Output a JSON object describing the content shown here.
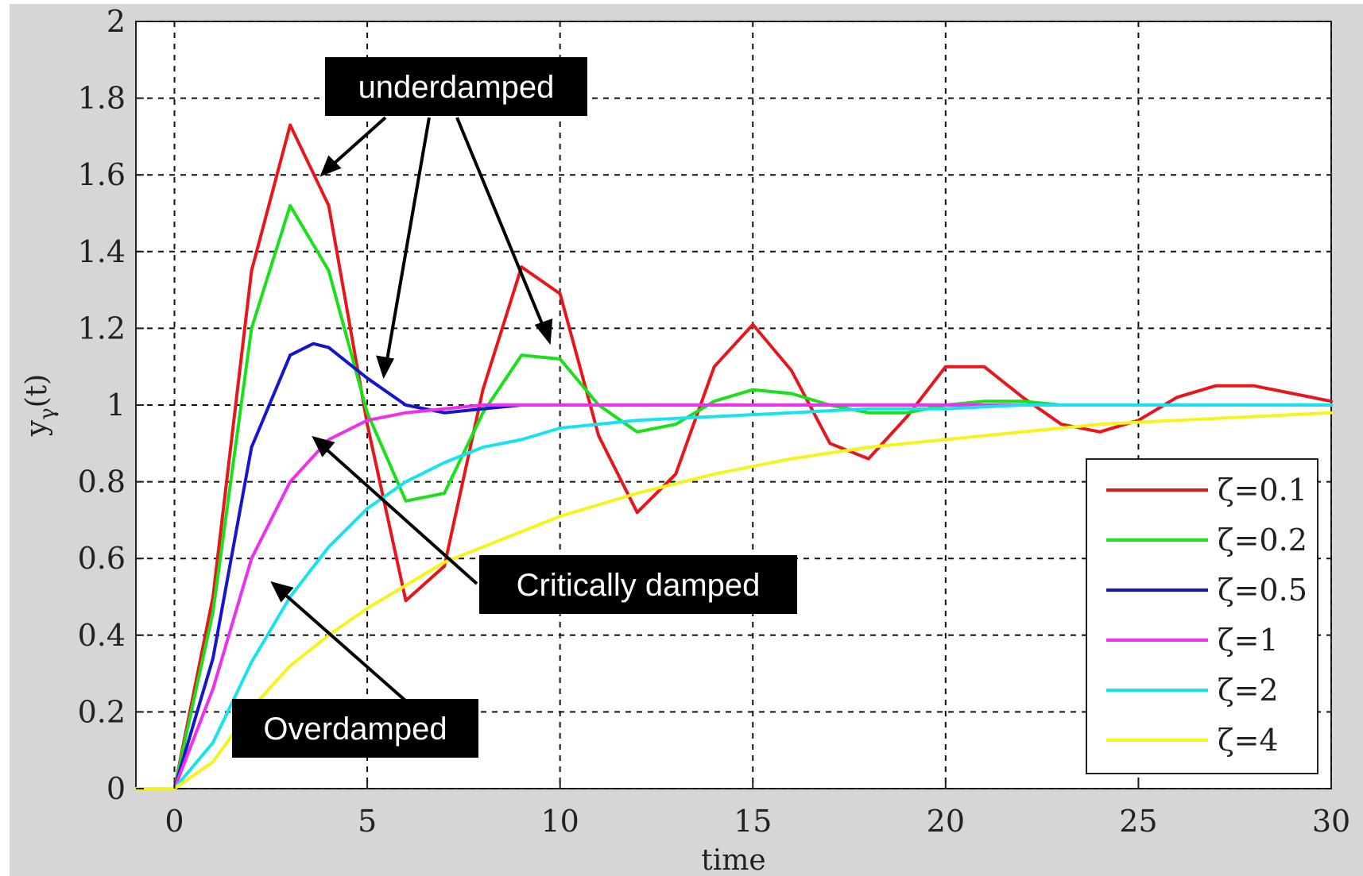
{
  "chart_data": {
    "type": "line",
    "xlabel": "time",
    "ylabel": "y",
    "ylabel_subscript": "γ",
    "ylabel_suffix": "(t)",
    "xlim": [
      -1,
      30
    ],
    "ylim": [
      0,
      2
    ],
    "xticks": [
      0,
      5,
      10,
      15,
      20,
      25,
      30
    ],
    "yticks": [
      0,
      0.2,
      0.4,
      0.6,
      0.8,
      1,
      1.2,
      1.4,
      1.6,
      1.8,
      2
    ],
    "xtick_labels": [
      "0",
      "5",
      "10",
      "15",
      "20",
      "25",
      "30"
    ],
    "ytick_labels": [
      "0",
      "0.2",
      "0.4",
      "0.6",
      "0.8",
      "1",
      "1.2",
      "1.4",
      "1.6",
      "1.8",
      "2"
    ],
    "grid": true,
    "legend_position": "bottom-right",
    "series": [
      {
        "name": "ζ=0.1",
        "zeta": 0.1,
        "color": "#e8161b",
        "x": [
          -1,
          0,
          1,
          2,
          3,
          4,
          5,
          6,
          7,
          8,
          9,
          10,
          11,
          12,
          13,
          14,
          15,
          16,
          17,
          18,
          19,
          20,
          21,
          22,
          23,
          24,
          25,
          26,
          27,
          28,
          29,
          30
        ],
        "y": [
          0,
          0,
          0.5,
          1.35,
          1.73,
          1.52,
          0.95,
          0.49,
          0.58,
          1.04,
          1.36,
          1.29,
          0.92,
          0.72,
          0.82,
          1.1,
          1.21,
          1.09,
          0.9,
          0.86,
          0.97,
          1.1,
          1.1,
          1.02,
          0.95,
          0.93,
          0.96,
          1.02,
          1.05,
          1.05,
          1.03,
          1.01
        ]
      },
      {
        "name": "ζ=0.2",
        "zeta": 0.2,
        "color": "#19e019",
        "x": [
          -1,
          0,
          1,
          2,
          3,
          4,
          5,
          6,
          7,
          8,
          9,
          10,
          11,
          12,
          13,
          14,
          15,
          16,
          17,
          18,
          19,
          20,
          21,
          22,
          23,
          24,
          25,
          26,
          27,
          28,
          29,
          30
        ],
        "y": [
          0,
          0,
          0.46,
          1.2,
          1.52,
          1.35,
          0.98,
          0.75,
          0.77,
          0.98,
          1.13,
          1.12,
          1.0,
          0.93,
          0.95,
          1.01,
          1.04,
          1.03,
          1.0,
          0.98,
          0.98,
          1.0,
          1.01,
          1.01,
          1.0,
          1.0,
          1.0,
          1.0,
          1.0,
          1.0,
          1.0,
          1.0
        ]
      },
      {
        "name": "ζ=0.5",
        "zeta": 0.5,
        "color": "#1515d0",
        "x": [
          -1,
          0,
          1,
          2,
          3,
          3.6,
          4,
          5,
          6,
          7,
          8,
          9,
          10,
          11,
          12
        ],
        "y": [
          0,
          0,
          0.34,
          0.89,
          1.13,
          1.16,
          1.15,
          1.07,
          1.0,
          0.98,
          0.99,
          1.0,
          1.0,
          1.0,
          1.0
        ]
      },
      {
        "name": "ζ=1",
        "zeta": 1,
        "color": "#f02ef0",
        "x": [
          -1,
          0,
          1,
          2,
          3,
          4,
          5,
          6,
          7,
          8,
          9,
          10,
          12,
          14,
          16,
          18,
          20,
          22,
          24,
          26,
          28,
          30
        ],
        "y": [
          0,
          0,
          0.26,
          0.6,
          0.8,
          0.91,
          0.96,
          0.98,
          0.99,
          1.0,
          1.0,
          1.0,
          1.0,
          1.0,
          1.0,
          1.0,
          1.0,
          1.0,
          1.0,
          1.0,
          1.0,
          1.0
        ]
      },
      {
        "name": "ζ=2",
        "zeta": 2,
        "color": "#17e3f0",
        "x": [
          -1,
          0,
          1,
          2,
          3,
          4,
          5,
          6,
          7,
          8,
          9,
          10,
          12,
          14,
          16,
          18,
          20,
          22,
          24,
          26,
          28,
          30
        ],
        "y": [
          0,
          0,
          0.12,
          0.33,
          0.5,
          0.63,
          0.73,
          0.8,
          0.85,
          0.89,
          0.91,
          0.94,
          0.96,
          0.97,
          0.98,
          0.99,
          0.99,
          1.0,
          1.0,
          1.0,
          1.0,
          1.0
        ]
      },
      {
        "name": "ζ=4",
        "zeta": 4,
        "color": "#f5f51c",
        "x": [
          -1,
          0,
          1,
          2,
          3,
          4,
          5,
          6,
          7,
          8,
          9,
          10,
          12,
          14,
          16,
          18,
          20,
          22,
          24,
          26,
          28,
          30
        ],
        "y": [
          0,
          0,
          0.07,
          0.21,
          0.32,
          0.4,
          0.47,
          0.53,
          0.59,
          0.63,
          0.67,
          0.71,
          0.77,
          0.82,
          0.86,
          0.89,
          0.91,
          0.93,
          0.95,
          0.96,
          0.97,
          0.98
        ]
      }
    ]
  },
  "annotations": {
    "underdamped": "underdamped",
    "critically_damped": "Critically damped",
    "overdamped": "Overdamped"
  }
}
